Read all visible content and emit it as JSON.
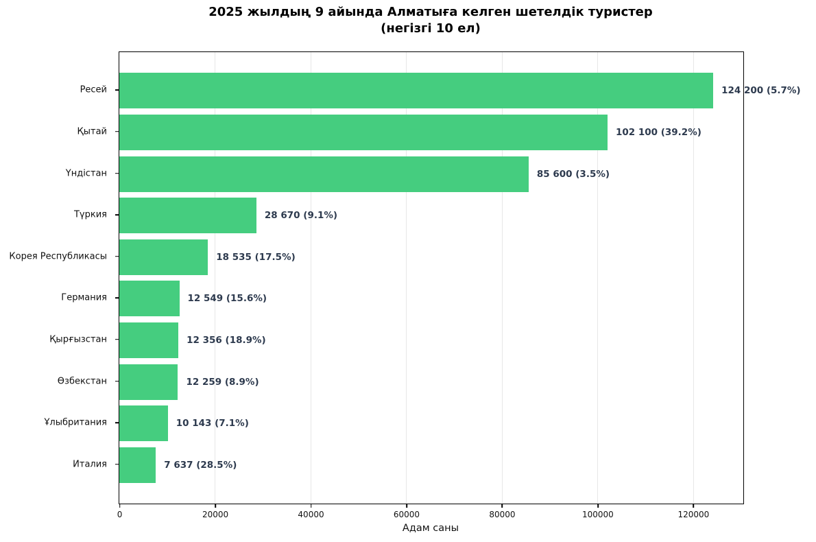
{
  "figure": {
    "title_line1": "2025 жылдың 9 айында Алматыға келген шетелдік туристер",
    "title_line2": "(негізгі 10 ел)"
  },
  "chart_data": {
    "type": "bar",
    "orientation": "horizontal",
    "title": "2025 жылдың 9 айында Алматыға келген шетелдік туристер (негізгі 10 ел)",
    "categories": [
      "Ресей",
      "Қытай",
      "Үндістан",
      "Түркия",
      "Корея Республикасы",
      "Германия",
      "Қырғызстан",
      "Өзбекстан",
      "Ұлыбритания",
      "Италия"
    ],
    "values": [
      124200,
      102100,
      85600,
      28670,
      18535,
      12549,
      12356,
      12259,
      10143,
      7637
    ],
    "bar_labels": [
      "124 200 (5.7%)",
      "102 100 (39.2%)",
      "85 600 (3.5%)",
      "28 670 (9.1%)",
      "18 535 (17.5%)",
      "12 549 (15.6%)",
      "12 356 (18.9%)",
      "12 259 (8.9%)",
      "10 143 (7.1%)",
      "7 637 (28.5%)"
    ],
    "percent_change": [
      5.7,
      39.2,
      3.5,
      9.1,
      17.5,
      15.6,
      18.9,
      8.9,
      7.1,
      28.5
    ],
    "xlabel": "Адам саны",
    "xticks": [
      0,
      20000,
      40000,
      60000,
      80000,
      100000,
      120000
    ],
    "xlim": [
      0,
      130500
    ],
    "grid": "vertical-light",
    "legend": "none",
    "colors": {
      "bar": "#45cd7f",
      "value_label": "#2d3a4e",
      "gridline": "#e7e7e7",
      "axis": "#000000",
      "text": "#111111"
    }
  }
}
